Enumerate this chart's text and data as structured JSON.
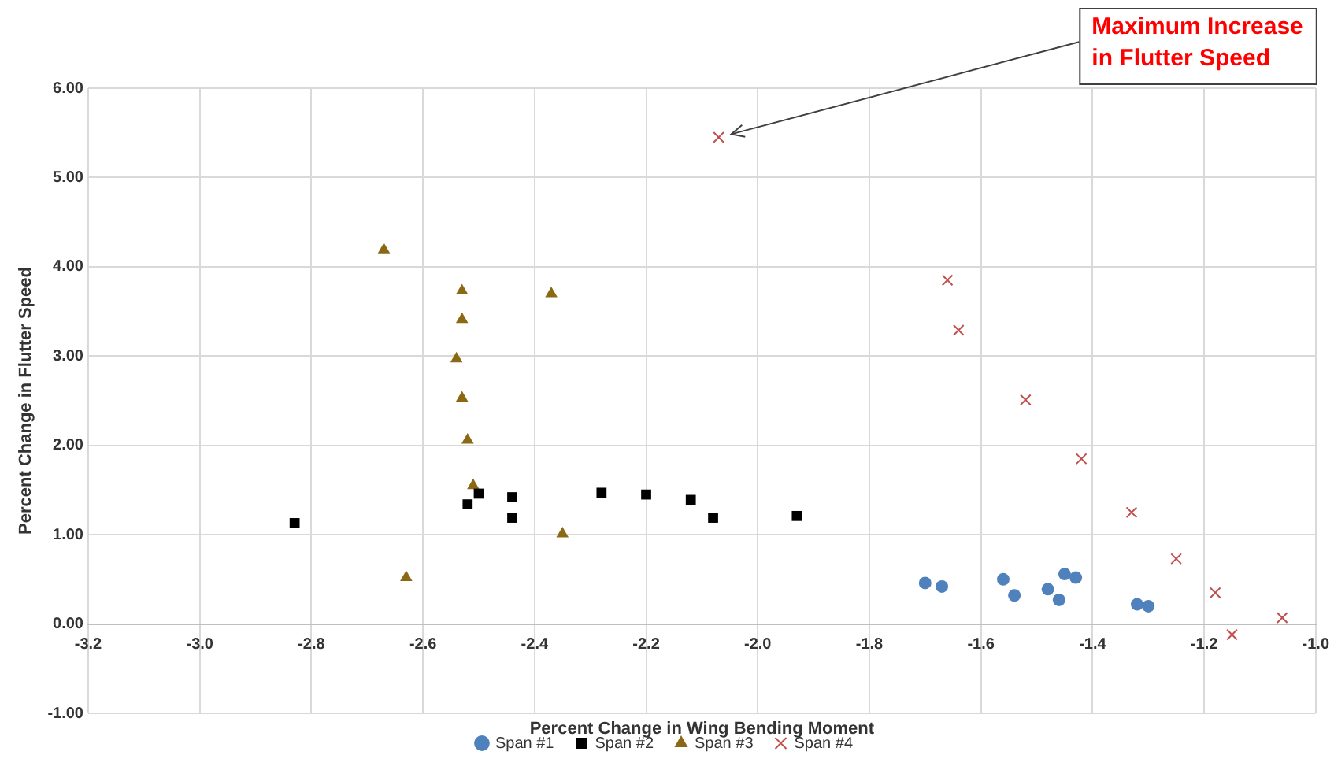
{
  "chart_data": {
    "type": "scatter",
    "xlabel": "Percent Change in Wing Bending Moment",
    "ylabel": "Percent Change in Flutter Speed",
    "xlim": [
      -3.2,
      -1.0
    ],
    "xticks": [
      -3.2,
      {
        "value": -3.0,
        "label": "-3.0"
      },
      -2.8,
      -2.6,
      -2.4,
      -2.2,
      {
        "value": -2.0,
        "label": "-2.0"
      },
      -1.8,
      -1.6,
      -1.4,
      -1.2,
      {
        "value": -1.0,
        "label": "-1.0"
      }
    ],
    "ylim": [
      -1,
      6
    ],
    "yticks": [
      {
        "value": -1,
        "label": "-1.00"
      },
      {
        "value": 0,
        "label": "0.00"
      },
      {
        "value": 1,
        "label": "1.00"
      },
      {
        "value": 2,
        "label": "2.00"
      },
      {
        "value": 3,
        "label": "3.00"
      },
      {
        "value": 4,
        "label": "4.00"
      },
      {
        "value": 5,
        "label": "5.00"
      },
      {
        "value": 6,
        "label": "6.00"
      }
    ],
    "grid": true,
    "legend": "bottom",
    "series": [
      {
        "name": "Span #1",
        "color": "#4f81bd",
        "marker": "circle",
        "x": [
          -1.7,
          -1.67,
          -1.56,
          -1.54,
          -1.48,
          -1.46,
          -1.45,
          -1.43,
          -1.32,
          -1.3
        ],
        "values": [
          0.46,
          0.42,
          0.5,
          0.32,
          0.39,
          0.27,
          0.56,
          0.52,
          0.22,
          0.2
        ]
      },
      {
        "name": "Span #2",
        "color": "#000000",
        "marker": "square",
        "x": [
          -2.83,
          -2.52,
          -2.5,
          -2.44,
          -2.44,
          -2.28,
          -2.2,
          -2.12,
          -2.08,
          -1.93
        ],
        "values": [
          1.13,
          1.34,
          1.46,
          1.42,
          1.19,
          1.47,
          1.45,
          1.39,
          1.19,
          1.21
        ]
      },
      {
        "name": "Span #3",
        "color": "#8b6914",
        "marker": "triangle",
        "x": [
          -2.67,
          -2.53,
          -2.53,
          -2.54,
          -2.53,
          -2.52,
          -2.51,
          -2.37,
          -2.35,
          -2.63
        ],
        "values": [
          4.19,
          3.73,
          3.41,
          2.97,
          2.53,
          2.06,
          1.55,
          3.7,
          1.01,
          0.52
        ]
      },
      {
        "name": "Span #4",
        "color": "#c0504d",
        "marker": "cross",
        "x": [
          -2.07,
          -1.66,
          -1.64,
          -1.52,
          -1.42,
          -1.33,
          -1.25,
          -1.18,
          -1.15,
          -1.06
        ],
        "values": [
          5.45,
          3.85,
          3.29,
          2.51,
          1.85,
          1.25,
          0.73,
          0.35,
          -0.12,
          0.07
        ]
      }
    ],
    "annotations": [
      {
        "text": "Maximum Increase in Flutter Speed",
        "x": -2.07,
        "y": 5.45
      }
    ]
  }
}
